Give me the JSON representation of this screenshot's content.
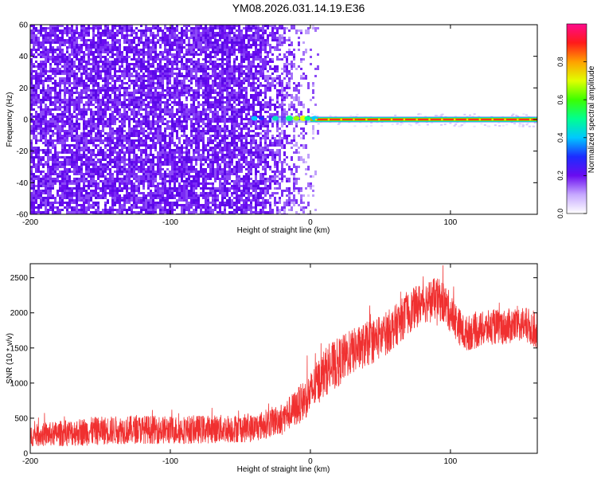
{
  "title": "YM08.2026.031.14.19.E36",
  "colors": {
    "snr_line": "#f03030",
    "signal_core": "#ff2020",
    "noise_base": "#6a0cf0"
  },
  "chart_data": [
    {
      "type": "heatmap",
      "title": "YM08.2026.031.14.19.E36",
      "xlabel": "Height of straight line (km)",
      "ylabel": "Frequency (Hz)",
      "xlim": [
        -200,
        162
      ],
      "ylim": [
        -60,
        60
      ],
      "x_ticks": [
        -200,
        -100,
        0,
        100
      ],
      "y_ticks": [
        -60,
        -40,
        -20,
        0,
        20,
        40,
        60
      ],
      "colorbar": {
        "label": "Normalized spectral amplitude",
        "range": [
          0,
          1
        ],
        "ticks": [
          0.0,
          0.2,
          0.4,
          0.6,
          0.8
        ],
        "colormap": "rainbow (white-violet-blue-cyan-green-yellow-red-magenta)"
      },
      "description_values": {
        "noise_region_x": [
          -200,
          0
        ],
        "signal_line_frequency_hz": 0,
        "signal_band_start_x": 0,
        "signal_band_end_x": 162
      },
      "grid": false
    },
    {
      "type": "line",
      "xlabel": "Height of straight line (km)",
      "ylabel": "SNR (10 * v/v)",
      "xlim": [
        -200,
        162
      ],
      "ylim": [
        0,
        2700
      ],
      "x_ticks": [
        -200,
        -100,
        0,
        100
      ],
      "y_ticks": [
        0,
        500,
        1000,
        1500,
        2000,
        2500
      ],
      "series": [
        {
          "x": [
            -200,
            -180,
            -160,
            -140,
            -120,
            -100,
            -80,
            -60,
            -40,
            -20,
            -10,
            0,
            5,
            10,
            20,
            30,
            40,
            50,
            60,
            70,
            80,
            90,
            95,
            100,
            110,
            120,
            130,
            140,
            150,
            162
          ],
          "y": [
            250,
            280,
            310,
            330,
            340,
            330,
            340,
            350,
            360,
            500,
            650,
            850,
            1000,
            1150,
            1300,
            1450,
            1550,
            1650,
            1800,
            2000,
            2150,
            2200,
            2150,
            2000,
            1700,
            1750,
            1800,
            1800,
            1850,
            1750
          ],
          "noise_amplitude": [
            150,
            180,
            200,
            200,
            200,
            200,
            200,
            200,
            200,
            220,
            260,
            300,
            320,
            340,
            350,
            320,
            320,
            320,
            300,
            300,
            300,
            300,
            300,
            280,
            250,
            250,
            250,
            250,
            260,
            260
          ]
        }
      ],
      "grid": false
    }
  ]
}
